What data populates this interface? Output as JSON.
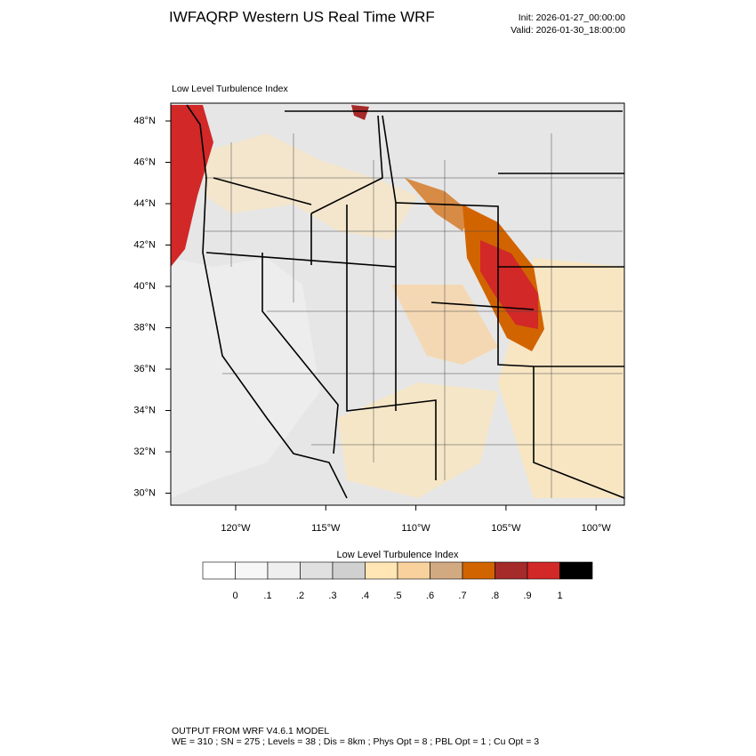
{
  "header": {
    "title": "IWFAQRP Western US Real Time WRF",
    "init": "Init: 2026-01-27_00:00:00",
    "valid": "Valid: 2026-01-30_18:00:00"
  },
  "map": {
    "subtitle": "Low Level Turbulence Index",
    "lat_labels": [
      "48°N",
      "46°N",
      "44°N",
      "42°N",
      "40°N",
      "38°N",
      "36°N",
      "34°N",
      "32°N",
      "30°N"
    ],
    "lon_labels": [
      "120°W",
      "115°W",
      "110°W",
      "105°W",
      "100°W"
    ]
  },
  "colorbar": {
    "title": "Low Level Turbulence Index",
    "colors": [
      "#ffffff",
      "#f7f7f7",
      "#efefef",
      "#e0e0e0",
      "#d0d0d0",
      "#ffe6b4",
      "#f9d19c",
      "#d2aa82",
      "#d26400",
      "#a52a2a",
      "#d22828",
      "#000000"
    ],
    "labels": [
      "0",
      ".1",
      ".2",
      ".3",
      ".4",
      ".5",
      ".6",
      ".7",
      ".8",
      ".9",
      "1"
    ]
  },
  "footer": {
    "line1": "OUTPUT FROM WRF V4.6.1 MODEL",
    "line2": "WE = 310 ; SN = 275 ; Levels = 38 ; Dis = 8km ; Phys Opt = 8 ; PBL Opt = 1 ; Cu Opt = 3"
  }
}
